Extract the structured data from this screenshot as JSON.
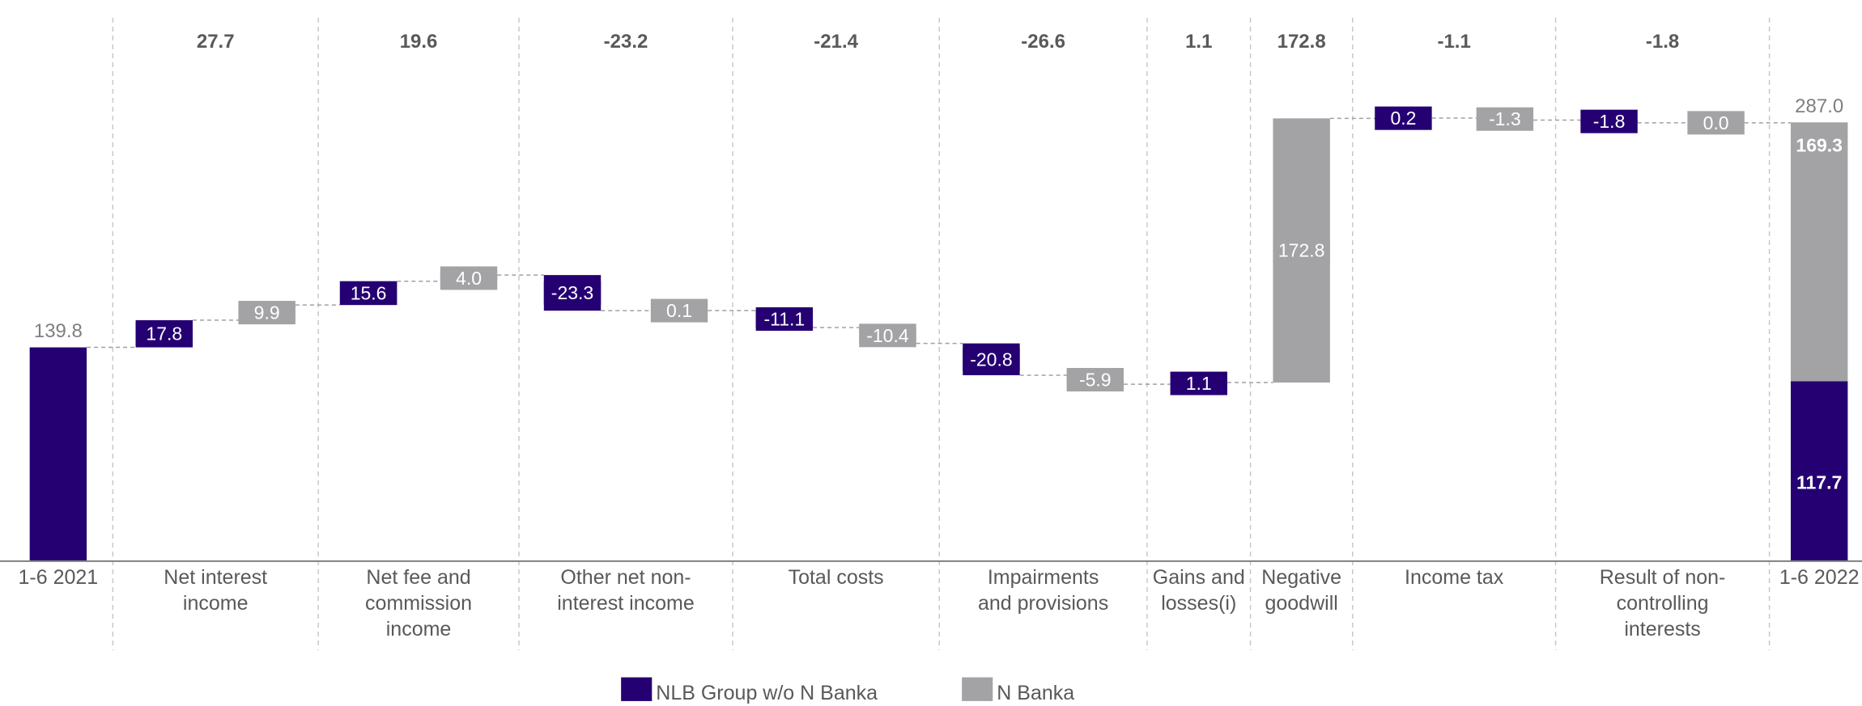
{
  "chart_data": {
    "type": "waterfall",
    "categories": [
      "1-6 2021",
      "Net interest\nincome",
      "Net fee and\ncommission\nincome",
      "Other net non-\ninterest income",
      "Total costs",
      "Impairments\nand provisions",
      "Gains and\nlosses(i)",
      "Negative\ngoodwill",
      "Income tax",
      "Result of non-\ncontrolling\ninterests",
      "1-6 2022"
    ],
    "totals": [
      null,
      27.7,
      19.6,
      -23.2,
      -21.4,
      -26.6,
      1.1,
      172.8,
      -1.1,
      -1.8,
      null
    ],
    "series": [
      {
        "name": "NLB Group w/o N Banka",
        "color": "#250072",
        "values": [
          139.8,
          17.8,
          15.6,
          -23.3,
          -11.1,
          -20.8,
          1.1,
          null,
          0.2,
          -1.8,
          117.7
        ],
        "value_labels": [
          "139.8",
          "17.8",
          "15.6",
          "-23.3",
          "-11.1",
          "-20.8",
          "1.1",
          null,
          "0.2",
          "-1.8",
          "117.7"
        ]
      },
      {
        "name": "N Banka",
        "color": "#a3a3a6",
        "values": [
          null,
          9.9,
          4.0,
          0.1,
          -10.4,
          -5.9,
          null,
          172.8,
          -1.3,
          0.0,
          169.3
        ],
        "value_labels": [
          null,
          "9.9",
          "4.0",
          "0.1",
          "-10.4",
          "-5.9",
          null,
          "172.8",
          "-1.3",
          "0.0",
          "169.3"
        ]
      }
    ],
    "end_total": 287.0,
    "end_total_label": "287.0"
  }
}
